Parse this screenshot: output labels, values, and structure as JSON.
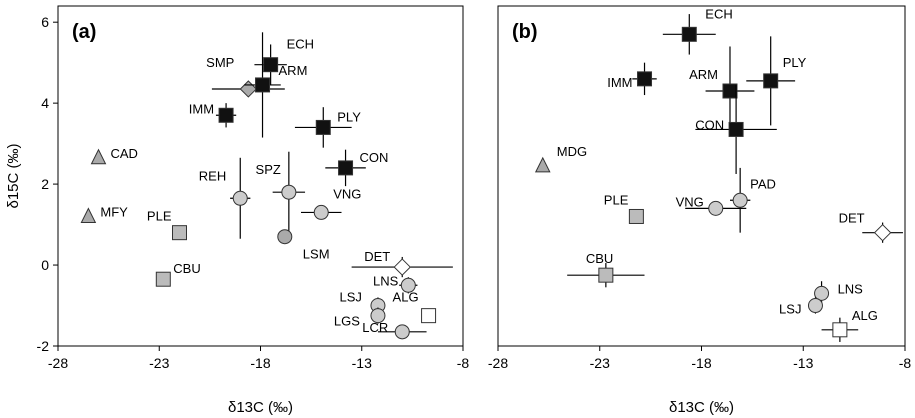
{
  "chart_data": [
    {
      "type": "scatter",
      "panel_label": "(a)",
      "xlabel": "δ13C (‰)",
      "ylabel": "δ15C (‰)",
      "xlim": [
        -28,
        -8
      ],
      "ylim": [
        -2,
        6.4
      ],
      "xticks": [
        "-28",
        "-23",
        "-18",
        "-13",
        "-8"
      ],
      "yticks": [
        "-2",
        "0",
        "2",
        "4",
        "6"
      ],
      "points": [
        {
          "label": "ECH",
          "x": -17.5,
          "y": 4.95,
          "shape": "square",
          "fill": "#111111",
          "xerr": 0.8,
          "yerr": 0.5
        },
        {
          "label": "SMP",
          "x": -18.6,
          "y": 4.35,
          "shape": "diamond",
          "fill": "#aaaaaa",
          "xerr": 1.8,
          "yerr": 0
        },
        {
          "label": "ARM",
          "x": -17.9,
          "y": 4.45,
          "shape": "square",
          "fill": "#111111",
          "xerr": 0.9,
          "yerr": 1.3
        },
        {
          "label": "IMM",
          "x": -19.7,
          "y": 3.7,
          "shape": "square",
          "fill": "#111111",
          "xerr": 0.5,
          "yerr": 0.3
        },
        {
          "label": "PLY",
          "x": -14.9,
          "y": 3.4,
          "shape": "square",
          "fill": "#111111",
          "xerr": 1.4,
          "yerr": 0.5
        },
        {
          "label": "CON",
          "x": -13.8,
          "y": 2.4,
          "shape": "square",
          "fill": "#111111",
          "xerr": 1.0,
          "yerr": 0.45
        },
        {
          "label": "CAD",
          "x": -26.0,
          "y": 2.65,
          "shape": "triangle",
          "fill": "#aaaaaa",
          "xerr": 0,
          "yerr": 0
        },
        {
          "label": "MFY",
          "x": -26.5,
          "y": 1.2,
          "shape": "triangle",
          "fill": "#aaaaaa",
          "xerr": 0,
          "yerr": 0
        },
        {
          "label": "REH",
          "x": -19.0,
          "y": 1.65,
          "shape": "circle",
          "fill": "#cccccc",
          "xerr": 0.5,
          "yerr": 1.0
        },
        {
          "label": "SPZ",
          "x": -16.6,
          "y": 1.8,
          "shape": "circle",
          "fill": "#cccccc",
          "xerr": 0.8,
          "yerr": 1.0
        },
        {
          "label": "VNG",
          "x": -15.0,
          "y": 1.3,
          "shape": "circle",
          "fill": "#cccccc",
          "xerr": 1.0,
          "yerr": 0
        },
        {
          "label": "PLE",
          "x": -22.0,
          "y": 0.8,
          "shape": "square",
          "fill": "#bbbbbb",
          "xerr": 0,
          "yerr": 0
        },
        {
          "label": "LSM",
          "x": -16.8,
          "y": 0.7,
          "shape": "circle",
          "fill": "#aaaaaa",
          "xerr": 0,
          "yerr": 0
        },
        {
          "label": "DET",
          "x": -11.0,
          "y": -0.05,
          "shape": "diamond",
          "fill": "#ffffff",
          "xerr": 2.5,
          "yerr": 0.25
        },
        {
          "label": "CBU",
          "x": -22.8,
          "y": -0.35,
          "shape": "square",
          "fill": "#bbbbbb",
          "xerr": 0,
          "yerr": 0
        },
        {
          "label": "LNS",
          "x": -10.7,
          "y": -0.5,
          "shape": "circle",
          "fill": "#cccccc",
          "xerr": 0.45,
          "yerr": 0.2
        },
        {
          "label": "LSJ",
          "x": -12.2,
          "y": -1.0,
          "shape": "circle",
          "fill": "#cccccc",
          "xerr": 0.35,
          "yerr": 0.2
        },
        {
          "label": "LGS",
          "x": -12.2,
          "y": -1.25,
          "shape": "circle",
          "fill": "#cccccc",
          "xerr": 0.35,
          "yerr": 0.2
        },
        {
          "label": "ALG",
          "x": -9.7,
          "y": -1.25,
          "shape": "square",
          "fill": "#ffffff",
          "xerr": 0,
          "yerr": 0
        },
        {
          "label": "LCR",
          "x": -11.0,
          "y": -1.65,
          "shape": "circle",
          "fill": "#cccccc",
          "xerr": 1.2,
          "yerr": 0
        }
      ]
    },
    {
      "type": "scatter",
      "panel_label": "(b)",
      "xlabel": "δ13C (‰)",
      "ylabel": "",
      "xlim": [
        -28,
        -8
      ],
      "ylim": [
        -2,
        6.4
      ],
      "xticks": [
        "-28",
        "-23",
        "-18",
        "-13",
        "-8"
      ],
      "yticks": [],
      "points": [
        {
          "label": "ECH",
          "x": -18.6,
          "y": 5.7,
          "shape": "square",
          "fill": "#111111",
          "xerr": 1.3,
          "yerr": 0.5
        },
        {
          "label": "IMM",
          "x": -20.8,
          "y": 4.6,
          "shape": "square",
          "fill": "#111111",
          "xerr": 0.6,
          "yerr": 0.4
        },
        {
          "label": "ARM",
          "x": -16.6,
          "y": 4.3,
          "shape": "square",
          "fill": "#111111",
          "xerr": 1.2,
          "yerr": 1.1
        },
        {
          "label": "PLY",
          "x": -14.6,
          "y": 4.55,
          "shape": "square",
          "fill": "#111111",
          "xerr": 1.2,
          "yerr": 1.1
        },
        {
          "label": "CON",
          "x": -16.3,
          "y": 3.35,
          "shape": "square",
          "fill": "#111111",
          "xerr": 2.0,
          "yerr": 1.1
        },
        {
          "label": "MDG",
          "x": -25.8,
          "y": 2.45,
          "shape": "triangle",
          "fill": "#aaaaaa",
          "xerr": 0,
          "yerr": 0
        },
        {
          "label": "PAD",
          "x": -16.1,
          "y": 1.6,
          "shape": "circle",
          "fill": "#cccccc",
          "xerr": 0.5,
          "yerr": 0.8
        },
        {
          "label": "VNG",
          "x": -17.3,
          "y": 1.4,
          "shape": "circle",
          "fill": "#cccccc",
          "xerr": 1.5,
          "yerr": 0
        },
        {
          "label": "PLE",
          "x": -21.2,
          "y": 1.2,
          "shape": "square",
          "fill": "#bbbbbb",
          "xerr": 0,
          "yerr": 0
        },
        {
          "label": "DET",
          "x": -9.1,
          "y": 0.8,
          "shape": "diamond",
          "fill": "#ffffff",
          "xerr": 1.0,
          "yerr": 0.25
        },
        {
          "label": "CBU",
          "x": -22.7,
          "y": -0.25,
          "shape": "square",
          "fill": "#bbbbbb",
          "xerr": 1.9,
          "yerr": 0.3
        },
        {
          "label": "LNS",
          "x": -12.1,
          "y": -0.7,
          "shape": "circle",
          "fill": "#cccccc",
          "xerr": 0.25,
          "yerr": 0.3
        },
        {
          "label": "LSJ",
          "x": -12.4,
          "y": -1.0,
          "shape": "circle",
          "fill": "#cccccc",
          "xerr": 0.25,
          "yerr": 0.2
        },
        {
          "label": "ALG",
          "x": -11.2,
          "y": -1.6,
          "shape": "square",
          "fill": "#ffffff",
          "xerr": 0.9,
          "yerr": 0.3
        }
      ]
    }
  ]
}
